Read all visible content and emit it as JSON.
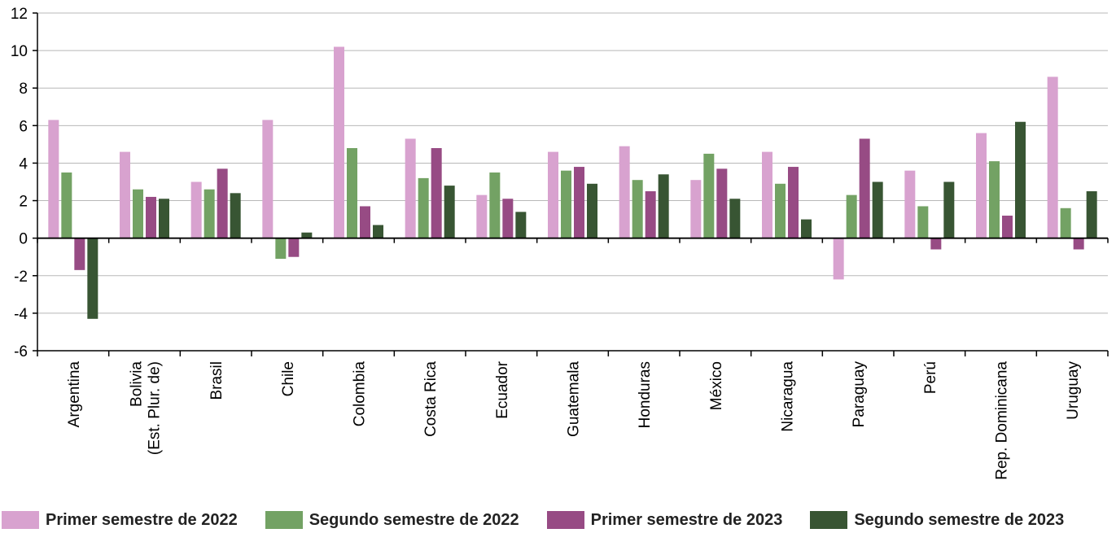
{
  "chart_data": {
    "type": "bar",
    "title": "",
    "xlabel": "",
    "ylabel": "",
    "ylim": [
      -6,
      12
    ],
    "yticks": [
      -6,
      -4,
      -2,
      0,
      2,
      4,
      6,
      8,
      10,
      12
    ],
    "grid": true,
    "legend_position": "bottom",
    "categories": [
      "Argentina",
      "Bolivia\n(Est. Plur. de)",
      "Brasil",
      "Chile",
      "Colombia",
      "Costa Rica",
      "Ecuador",
      "Guatemala",
      "Honduras",
      "México",
      "Nicaragua",
      "Paraguay",
      "Perú",
      "Rep. Dominicana",
      "Uruguay"
    ],
    "series": [
      {
        "name": "Primer semestre de 2022",
        "color": "#d8a2cf",
        "values": [
          6.3,
          4.6,
          3.0,
          6.3,
          10.2,
          5.3,
          2.3,
          4.6,
          4.9,
          3.1,
          4.6,
          -2.2,
          3.6,
          5.6,
          8.6
        ]
      },
      {
        "name": "Segundo semestre de 2022",
        "color": "#73a264",
        "values": [
          3.5,
          2.6,
          2.6,
          -1.1,
          4.8,
          3.2,
          3.5,
          3.6,
          3.1,
          4.5,
          2.9,
          2.3,
          1.7,
          4.1,
          1.6
        ]
      },
      {
        "name": "Primer semestre de 2023",
        "color": "#974b84",
        "values": [
          -1.7,
          2.2,
          3.7,
          -1.0,
          1.7,
          4.8,
          2.1,
          3.8,
          2.5,
          3.7,
          3.8,
          5.3,
          -0.6,
          1.2,
          -0.6
        ]
      },
      {
        "name": "Segundo semestre de 2023",
        "color": "#385533",
        "values": [
          -4.3,
          2.1,
          2.4,
          0.3,
          0.7,
          2.8,
          1.4,
          2.9,
          3.4,
          2.1,
          1.0,
          3.0,
          3.0,
          6.2,
          2.5
        ]
      }
    ]
  }
}
